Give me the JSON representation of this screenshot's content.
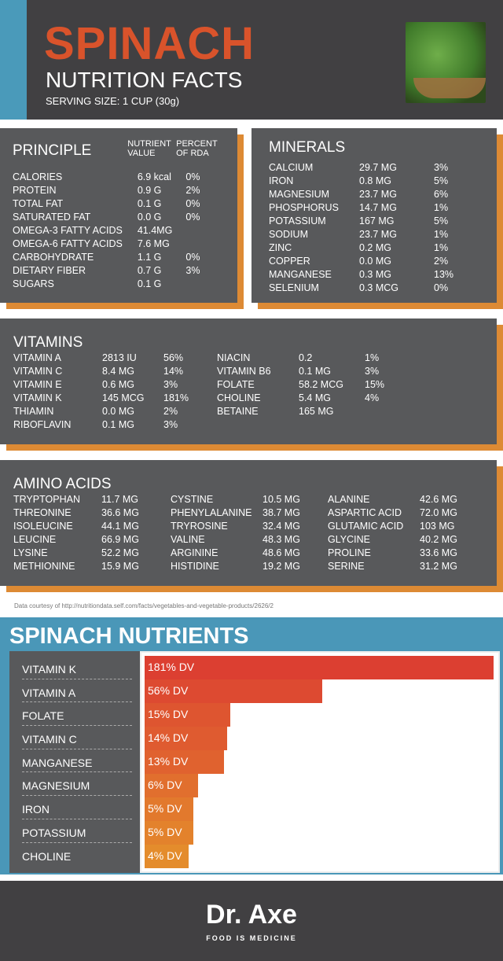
{
  "header": {
    "title": "SPINACH",
    "subtitle": "NUTRITION FACTS",
    "serving": "SERVING SIZE: 1 CUP (30g)"
  },
  "principle": {
    "title": "PRINCIPLE",
    "col_value": "NUTRIENT VALUE",
    "col_rda": "PERCENT OF RDA",
    "rows": [
      [
        "CALORIES",
        "6.9 kcal",
        "0%"
      ],
      [
        "PROTEIN",
        "0.9 G",
        "2%"
      ],
      [
        "TOTAL FAT",
        "0.1 G",
        "0%"
      ],
      [
        "SATURATED FAT",
        "0.0 G",
        "0%"
      ],
      [
        "OMEGA-3 FATTY ACIDS",
        "41.4MG",
        ""
      ],
      [
        "OMEGA-6 FATTY ACIDS",
        "7.6 MG",
        ""
      ],
      [
        "CARBOHYDRATE",
        "1.1 G",
        "0%"
      ],
      [
        "DIETARY FIBER",
        "0.7 G",
        "3%"
      ],
      [
        "SUGARS",
        "0.1 G",
        ""
      ]
    ]
  },
  "minerals": {
    "title": "MINERALS",
    "rows": [
      [
        "CALCIUM",
        "29.7 MG",
        "3%"
      ],
      [
        "IRON",
        "0.8 MG",
        "5%"
      ],
      [
        "MAGNESIUM",
        "23.7 MG",
        "6%"
      ],
      [
        "PHOSPHORUS",
        "14.7 MG",
        "1%"
      ],
      [
        "POTASSIUM",
        "167 MG",
        "5%"
      ],
      [
        "SODIUM",
        "23.7 MG",
        "1%"
      ],
      [
        "ZINC",
        "0.2 MG",
        "1%"
      ],
      [
        "COPPER",
        "0.0 MG",
        "2%"
      ],
      [
        "MANGANESE",
        "0.3 MG",
        "13%"
      ],
      [
        "SELENIUM",
        "0.3 MCG",
        "0%"
      ]
    ]
  },
  "vitamins": {
    "title": "VITAMINS",
    "left": [
      [
        "VITAMIN A",
        "2813 IU",
        "56%"
      ],
      [
        "VITAMIN C",
        "8.4 MG",
        "14%"
      ],
      [
        "VITAMIN E",
        "0.6 MG",
        "3%"
      ],
      [
        "VITAMIN K",
        "145 MCG",
        "181%"
      ],
      [
        "THIAMIN",
        "0.0 MG",
        "2%"
      ],
      [
        "RIBOFLAVIN",
        "0.1 MG",
        "3%"
      ]
    ],
    "right": [
      [
        "NIACIN",
        "0.2",
        "1%"
      ],
      [
        "VITAMIN B6",
        "0.1 MG",
        "3%"
      ],
      [
        "FOLATE",
        "58.2 MCG",
        "15%"
      ],
      [
        "CHOLINE",
        "5.4 MG",
        "4%"
      ],
      [
        "BETAINE",
        "165 MG",
        ""
      ]
    ]
  },
  "amino": {
    "title": "AMINO ACIDS",
    "cols": [
      [
        [
          "TRYPTOPHAN",
          "11.7 MG"
        ],
        [
          "THREONINE",
          "36.6 MG"
        ],
        [
          "ISOLEUCINE",
          "44.1 MG"
        ],
        [
          "LEUCINE",
          "66.9 MG"
        ],
        [
          "LYSINE",
          "52.2 MG"
        ],
        [
          "METHIONINE",
          "15.9 MG"
        ]
      ],
      [
        [
          "CYSTINE",
          "10.5 MG"
        ],
        [
          "PHENYLALANINE",
          "38.7 MG"
        ],
        [
          "TRYROSINE",
          "32.4 MG"
        ],
        [
          "VALINE",
          "48.3 MG"
        ],
        [
          "ARGININE",
          "48.6 MG"
        ],
        [
          "HISTIDINE",
          "19.2 MG"
        ]
      ],
      [
        [
          "ALANINE",
          "42.6 MG"
        ],
        [
          "ASPARTIC ACID",
          "72.0 MG"
        ],
        [
          "GLUTAMIC ACID",
          "103 MG"
        ],
        [
          "GLYCINE",
          "40.2 MG"
        ],
        [
          "PROLINE",
          "33.6 MG"
        ],
        [
          "SERINE",
          "31.2 MG"
        ]
      ]
    ]
  },
  "source": "Data courtesy of http://nutritiondata.self.com/facts/vegetables-and-vegetable-products/2626/2",
  "chart_data": {
    "type": "bar",
    "orientation": "horizontal",
    "title": "SPINACH NUTRIENTS",
    "categories": [
      "VITAMIN K",
      "VITAMIN A",
      "FOLATE",
      "VITAMIN C",
      "MANGANESE",
      "MAGNESIUM",
      "IRON",
      "POTASSIUM",
      "CHOLINE"
    ],
    "values": [
      181,
      56,
      15,
      14,
      13,
      6,
      5,
      5,
      4
    ],
    "labels": [
      "181% DV",
      "56% DV",
      "15% DV",
      "14% DV",
      "13% DV",
      "6% DV",
      "5% DV",
      "5% DV",
      "4% DV"
    ],
    "unit": "% DV",
    "colors": [
      "#dc3f31",
      "#dd4a31",
      "#de5530",
      "#df5b30",
      "#e0622f",
      "#e16f2e",
      "#e2792d",
      "#e3822c",
      "#e48c2c"
    ]
  },
  "footer": {
    "brand": "Dr. Axe",
    "tagline": "FOOD IS MEDICINE"
  }
}
